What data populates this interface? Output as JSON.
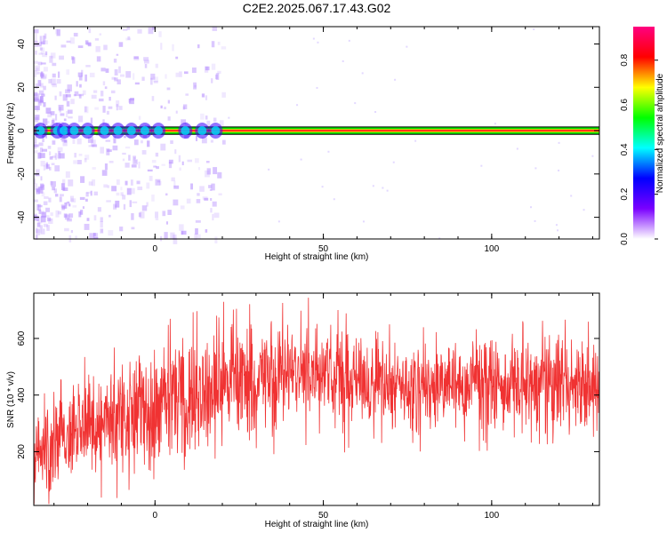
{
  "title": "C2E2.2025.067.17.43.G02",
  "colorbar": {
    "label": "Normalized spectral amplitude",
    "ticks": [
      "0.0",
      "0.2",
      "0.4",
      "0.6",
      "0.8"
    ],
    "colors": [
      "#ffffff",
      "#7a00ff",
      "#0000ff",
      "#00ffff",
      "#00ff00",
      "#ffff00",
      "#ff0000",
      "#ff0080"
    ]
  },
  "chart_data": [
    {
      "type": "heatmap",
      "xlabel": "Height of straight line (km)",
      "ylabel": "Frequency (Hz)",
      "xlim": [
        -36,
        132
      ],
      "ylim": [
        -50,
        48
      ],
      "xticks": [
        0,
        50,
        100
      ],
      "yticks": [
        -40,
        -20,
        0,
        20,
        40
      ],
      "xtick_labels": [
        "0",
        "50",
        "100"
      ],
      "ytick_labels": [
        "-40",
        "-20",
        "0",
        "20",
        "40"
      ],
      "band": {
        "center_hz": 0,
        "halfwidth_hz": 1.5,
        "start_x": -36,
        "end_x": 132,
        "blobs_x": [
          -34,
          -29,
          -27,
          -24,
          -20,
          -15,
          -11,
          -7,
          -3,
          1,
          9,
          14,
          18
        ]
      },
      "noise_region_x": [
        -36,
        20
      ]
    },
    {
      "type": "line",
      "xlabel": "Height of straight line (km)",
      "ylabel": "SNR (10 * v/v)",
      "xlim": [
        -36,
        132
      ],
      "ylim": [
        10,
        760
      ],
      "xticks": [
        0,
        50,
        100
      ],
      "yticks": [
        200,
        400,
        600
      ],
      "xtick_labels": [
        "0",
        "50",
        "100"
      ],
      "ytick_labels": [
        "200",
        "400",
        "600"
      ],
      "color": "#f03232",
      "envelope": [
        {
          "x": -36,
          "mean": 170,
          "spread": 150
        },
        {
          "x": -30,
          "mean": 260,
          "spread": 200
        },
        {
          "x": -25,
          "mean": 280,
          "spread": 180
        },
        {
          "x": -18,
          "mean": 290,
          "spread": 180
        },
        {
          "x": -10,
          "mean": 330,
          "spread": 200
        },
        {
          "x": 0,
          "mean": 360,
          "spread": 210
        },
        {
          "x": 10,
          "mean": 390,
          "spread": 200
        },
        {
          "x": 20,
          "mean": 430,
          "spread": 200
        },
        {
          "x": 30,
          "mean": 460,
          "spread": 200
        },
        {
          "x": 40,
          "mean": 480,
          "spread": 190
        },
        {
          "x": 50,
          "mean": 470,
          "spread": 180
        },
        {
          "x": 60,
          "mean": 450,
          "spread": 170
        },
        {
          "x": 70,
          "mean": 440,
          "spread": 160
        },
        {
          "x": 80,
          "mean": 420,
          "spread": 150
        },
        {
          "x": 90,
          "mean": 430,
          "spread": 150
        },
        {
          "x": 100,
          "mean": 440,
          "spread": 160
        },
        {
          "x": 110,
          "mean": 430,
          "spread": 160
        },
        {
          "x": 120,
          "mean": 440,
          "spread": 170
        },
        {
          "x": 132,
          "mean": 420,
          "spread": 170
        }
      ]
    }
  ]
}
